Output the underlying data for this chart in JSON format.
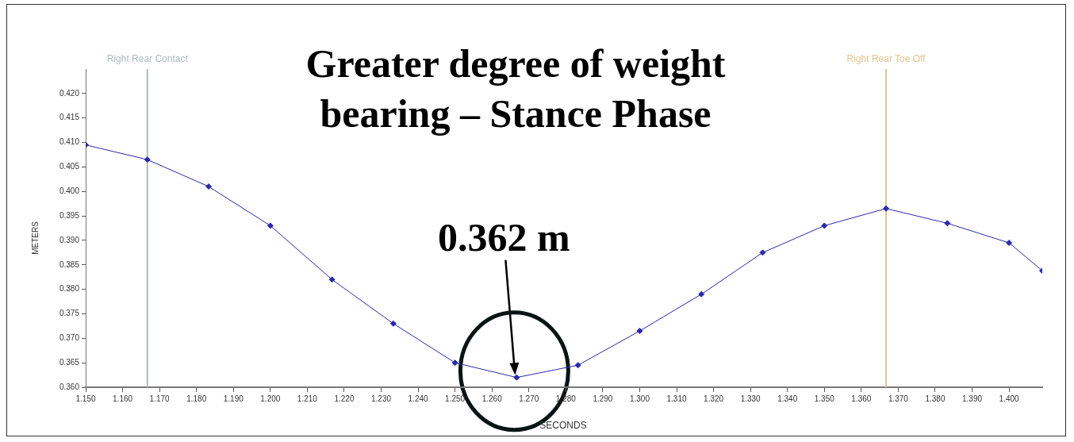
{
  "chart_data": {
    "type": "line",
    "title": "Greater degree of weight bearing – Stance Phase",
    "xlabel": "SECONDS",
    "ylabel": "METERS",
    "x": [
      1.15,
      1.1667,
      1.1833,
      1.2,
      1.2167,
      1.2333,
      1.25,
      1.2667,
      1.2833,
      1.3,
      1.3167,
      1.3333,
      1.35,
      1.3667,
      1.3833,
      1.4,
      1.409
    ],
    "series": [
      {
        "color": "#2a2aaa",
        "values": [
          0.4095,
          0.4065,
          0.401,
          0.393,
          0.382,
          0.373,
          0.365,
          0.362,
          0.3645,
          0.3715,
          0.379,
          0.3875,
          0.393,
          0.3965,
          0.3935,
          0.3895,
          0.3838
        ]
      }
    ],
    "xlim": [
      1.15,
      1.409
    ],
    "ylim": [
      0.36,
      0.425
    ],
    "xticks": [
      {
        "value": 1.15,
        "label": "1.150"
      },
      {
        "value": 1.16,
        "label": "1.160"
      },
      {
        "value": 1.17,
        "label": "1.170"
      },
      {
        "value": 1.18,
        "label": "1.180"
      },
      {
        "value": 1.19,
        "label": "1.190"
      },
      {
        "value": 1.2,
        "label": "1.200"
      },
      {
        "value": 1.21,
        "label": "1.210"
      },
      {
        "value": 1.22,
        "label": "1.220"
      },
      {
        "value": 1.23,
        "label": "1.230"
      },
      {
        "value": 1.24,
        "label": "1.240"
      },
      {
        "value": 1.25,
        "label": "1.250"
      },
      {
        "value": 1.26,
        "label": "1.260"
      },
      {
        "value": 1.27,
        "label": "1.270"
      },
      {
        "value": 1.28,
        "label": "1.280"
      },
      {
        "value": 1.29,
        "label": "1.290"
      },
      {
        "value": 1.3,
        "label": "1.300"
      },
      {
        "value": 1.31,
        "label": "1.310"
      },
      {
        "value": 1.32,
        "label": "1.320"
      },
      {
        "value": 1.33,
        "label": "1.330"
      },
      {
        "value": 1.34,
        "label": "1.340"
      },
      {
        "value": 1.35,
        "label": "1.350"
      },
      {
        "value": 1.36,
        "label": "1.360"
      },
      {
        "value": 1.37,
        "label": "1.370"
      },
      {
        "value": 1.38,
        "label": "1.380"
      },
      {
        "value": 1.39,
        "label": "1.390"
      },
      {
        "value": 1.4,
        "label": "1.400"
      }
    ],
    "yticks": [
      {
        "value": 0.36,
        "label": "0.360"
      },
      {
        "value": 0.365,
        "label": "0.365"
      },
      {
        "value": 0.37,
        "label": "0.370"
      },
      {
        "value": 0.375,
        "label": "0.375"
      },
      {
        "value": 0.38,
        "label": "0.380"
      },
      {
        "value": 0.385,
        "label": "0.385"
      },
      {
        "value": 0.39,
        "label": "0.390"
      },
      {
        "value": 0.395,
        "label": "0.395"
      },
      {
        "value": 0.4,
        "label": "0.400"
      },
      {
        "value": 0.405,
        "label": "0.405"
      },
      {
        "value": 0.41,
        "label": "0.410"
      },
      {
        "value": 0.415,
        "label": "0.415"
      },
      {
        "value": 0.42,
        "label": "0.420"
      }
    ],
    "ref_lines": [
      {
        "axis": "x",
        "value": 1.1667,
        "label": "Right Rear Contact",
        "color": "#a9bcbc"
      },
      {
        "axis": "x",
        "value": 1.3667,
        "label": "Right Rear Toe Off",
        "color": "#e3c38f"
      }
    ],
    "annotations": [
      {
        "text": "0.362 m",
        "x": 1.2667,
        "y": 0.362
      }
    ],
    "grid": false,
    "legend": false,
    "marker": "diamond",
    "line_style": "solid"
  }
}
